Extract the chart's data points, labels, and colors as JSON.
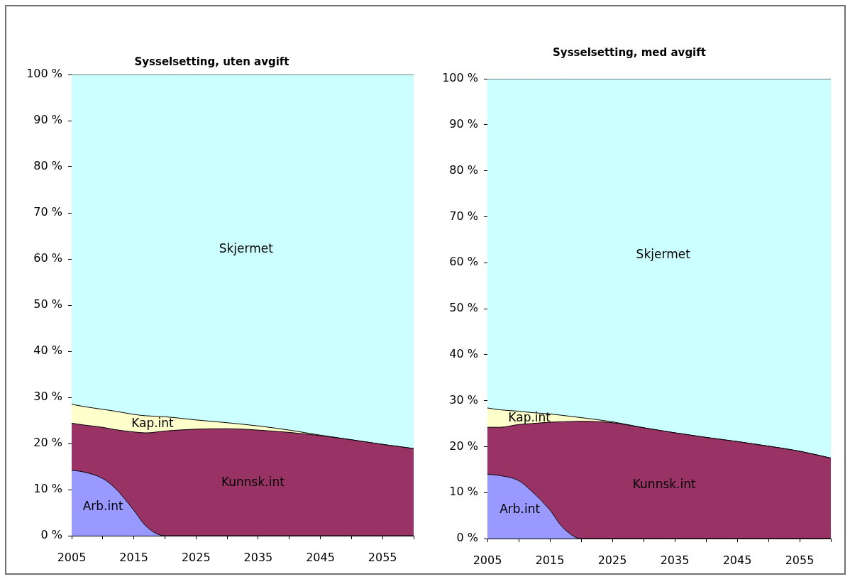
{
  "chart_data": [
    {
      "type": "area",
      "title": "Sysselsetting, uten avgift",
      "stacked": true,
      "x": [
        2005,
        2007,
        2010,
        2012,
        2015,
        2017,
        2020,
        2025,
        2030,
        2035,
        2040,
        2045,
        2050,
        2055,
        2060
      ],
      "series": [
        {
          "name": "Arb.int",
          "color": "#9999ff",
          "values": [
            14.2,
            13.8,
            12.4,
            10.3,
            5.5,
            2.0,
            0,
            0,
            0,
            0,
            0,
            0,
            0,
            0,
            0
          ]
        },
        {
          "name": "Kunnsk.int",
          "color": "#993366",
          "values": [
            10.2,
            10.2,
            11.1,
            12.7,
            17.0,
            20.3,
            22.7,
            23.1,
            23.2,
            22.9,
            22.4,
            21.7,
            20.8,
            19.8,
            18.9
          ]
        },
        {
          "name": "Kap.int",
          "color": "#ffffcc",
          "values": [
            4.1,
            4.0,
            3.9,
            4.0,
            3.8,
            3.7,
            3.1,
            2.0,
            1.3,
            0.9,
            0.5,
            0.1,
            0,
            0,
            0
          ]
        },
        {
          "name": "Skjermet",
          "color": "#ccffff",
          "values": [
            71.5,
            72.0,
            72.6,
            73.0,
            73.7,
            74.0,
            74.2,
            74.9,
            75.5,
            76.2,
            77.1,
            78.2,
            79.2,
            80.2,
            81.1
          ]
        }
      ],
      "xlim": [
        2005,
        2060
      ],
      "xticks": [
        2005,
        {
          "value": 2010,
          "label": null
        },
        2015,
        {
          "value": 2020,
          "label": null
        },
        2025,
        {
          "value": 2030,
          "label": null
        },
        2035,
        {
          "value": 2040,
          "label": null
        },
        2045,
        {
          "value": 2050,
          "label": null
        },
        2055,
        {
          "value": 2060,
          "label": null
        }
      ],
      "ylim": [
        0,
        100
      ],
      "yticks": [
        {
          "value": 0,
          "label": "0 %"
        },
        {
          "value": 10,
          "label": "10 %"
        },
        {
          "value": 20,
          "label": "20 %"
        },
        {
          "value": 30,
          "label": "30 %"
        },
        {
          "value": 40,
          "label": "40 %"
        },
        {
          "value": 50,
          "label": "50 %"
        },
        {
          "value": 60,
          "label": "60 %"
        },
        {
          "value": 70,
          "label": "70 %"
        },
        {
          "value": 80,
          "label": "80 %"
        },
        {
          "value": 90,
          "label": "90 %"
        },
        {
          "value": 100,
          "label": "100 %"
        }
      ]
    },
    {
      "type": "area",
      "title": "Sysselsetting, med avgift",
      "stacked": true,
      "x": [
        2005,
        2007,
        2010,
        2012,
        2015,
        2017,
        2020,
        2025,
        2030,
        2035,
        2040,
        2045,
        2050,
        2055,
        2060
      ],
      "series": [
        {
          "name": "Arb.int",
          "color": "#9999ff",
          "values": [
            14.0,
            13.7,
            12.6,
            10.4,
            6.2,
            2.5,
            0,
            0,
            0,
            0,
            0,
            0,
            0,
            0,
            0
          ]
        },
        {
          "name": "Kunnsk.int",
          "color": "#993366",
          "values": [
            10.2,
            10.5,
            12.2,
            14.6,
            19.1,
            22.9,
            25.5,
            25.2,
            24.1,
            23.0,
            22.0,
            21.1,
            20.1,
            19.0,
            17.5
          ]
        },
        {
          "name": "Kap.int",
          "color": "#ffffcc",
          "values": [
            4.2,
            3.8,
            2.9,
            2.4,
            1.8,
            1.4,
            0.8,
            0.2,
            0,
            0,
            0,
            0,
            0,
            0,
            0
          ]
        },
        {
          "name": "Skjermet",
          "color": "#ccffff",
          "values": [
            71.6,
            72.0,
            72.3,
            72.6,
            72.9,
            73.2,
            73.7,
            74.6,
            75.9,
            77.0,
            78.0,
            78.9,
            79.9,
            81.0,
            82.5
          ]
        }
      ],
      "xlim": [
        2005,
        2060
      ],
      "xticks": [
        2005,
        {
          "value": 2010,
          "label": null
        },
        2015,
        {
          "value": 2020,
          "label": null
        },
        2025,
        {
          "value": 2030,
          "label": null
        },
        2035,
        {
          "value": 2040,
          "label": null
        },
        2045,
        {
          "value": 2050,
          "label": null
        },
        2055,
        {
          "value": 2060,
          "label": null
        }
      ],
      "ylim": [
        0,
        100
      ],
      "yticks": [
        {
          "value": 0,
          "label": "0 %"
        },
        {
          "value": 10,
          "label": "10 %"
        },
        {
          "value": 20,
          "label": "20 %"
        },
        {
          "value": 30,
          "label": "30 %"
        },
        {
          "value": 40,
          "label": "40 %"
        },
        {
          "value": 50,
          "label": "50 %"
        },
        {
          "value": 60,
          "label": "60 %"
        },
        {
          "value": 70,
          "label": "70 %"
        },
        {
          "value": 80,
          "label": "80 %"
        },
        {
          "value": 90,
          "label": "90 %"
        },
        {
          "value": 100,
          "label": "100 %"
        }
      ]
    }
  ]
}
